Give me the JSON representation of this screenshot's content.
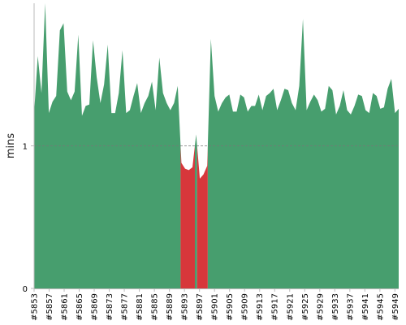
{
  "chart_data": {
    "type": "area",
    "ylabel": "mins",
    "ylim": [
      0,
      2
    ],
    "yticks": [
      0,
      1
    ],
    "reference_line": 1,
    "x_tick_labels": [
      "#5853",
      "#5857",
      "#5861",
      "#5865",
      "#5869",
      "#5873",
      "#5877",
      "#5881",
      "#5885",
      "#5889",
      "#5893",
      "#5897",
      "#5901",
      "#5905",
      "#5909",
      "#5913",
      "#5917",
      "#5921",
      "#5925",
      "#5929",
      "#5933",
      "#5937",
      "#5941",
      "#5945",
      "#5949"
    ],
    "x_start": 5853,
    "x_end": 5950,
    "values": [
      1.23,
      1.63,
      1.37,
      2.0,
      1.23,
      1.31,
      1.35,
      1.81,
      1.86,
      1.38,
      1.32,
      1.38,
      1.78,
      1.21,
      1.28,
      1.29,
      1.74,
      1.48,
      1.3,
      1.43,
      1.71,
      1.23,
      1.23,
      1.37,
      1.67,
      1.23,
      1.25,
      1.35,
      1.44,
      1.23,
      1.3,
      1.35,
      1.45,
      1.25,
      1.62,
      1.37,
      1.3,
      1.25,
      1.3,
      1.42,
      0.88,
      0.84,
      0.83,
      0.85,
      1.08,
      0.77,
      0.8,
      0.86,
      1.75,
      1.35,
      1.24,
      1.3,
      1.34,
      1.36,
      1.24,
      1.24,
      1.36,
      1.34,
      1.24,
      1.28,
      1.28,
      1.36,
      1.25,
      1.35,
      1.37,
      1.4,
      1.25,
      1.32,
      1.4,
      1.39,
      1.3,
      1.25,
      1.42,
      1.89,
      1.25,
      1.31,
      1.36,
      1.32,
      1.24,
      1.26,
      1.42,
      1.39,
      1.22,
      1.28,
      1.39,
      1.25,
      1.22,
      1.28,
      1.36,
      1.35,
      1.25,
      1.23,
      1.37,
      1.35,
      1.26,
      1.27,
      1.4,
      1.47,
      1.23,
      1.26
    ],
    "colors": {
      "pass": "#479e6e",
      "fail": "#d7373b",
      "axis": "#bbbbbb",
      "reference": "#777777"
    }
  }
}
